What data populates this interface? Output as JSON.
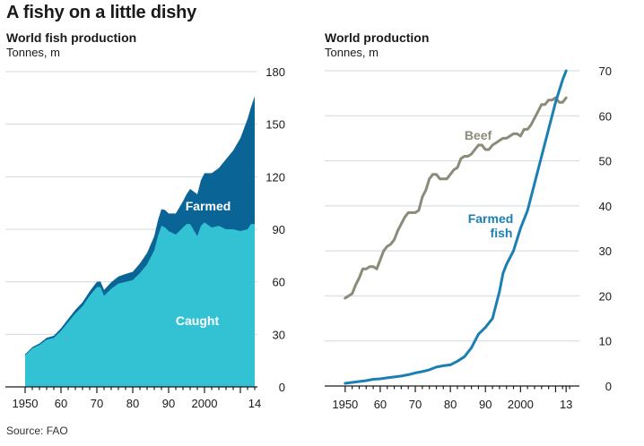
{
  "title": "A fishy on a little dishy",
  "source": "Source: FAO",
  "colors": {
    "caught": "#33c1d4",
    "farmed": "#0a6496",
    "farmed_fish_line": "#1b7fb4",
    "beef_line": "#8c8a79",
    "grid": "#cfd9de"
  },
  "chart_data": [
    {
      "type": "area",
      "stacked": true,
      "title": "World fish production",
      "ylabel": "Tonnes, m",
      "xlim": [
        1948,
        2014
      ],
      "ylim": [
        0,
        180
      ],
      "yticks": [
        0,
        30,
        60,
        90,
        120,
        150,
        180
      ],
      "xticks": [
        1950,
        1960,
        1970,
        1980,
        1990,
        2000,
        2014
      ],
      "xtick_labels": [
        "1950",
        "60",
        "70",
        "80",
        "90",
        "2000",
        "14"
      ],
      "series": [
        {
          "name": "Caught",
          "label": "Caught",
          "x": [
            1950,
            1952,
            1954,
            1956,
            1958,
            1960,
            1962,
            1964,
            1966,
            1968,
            1970,
            1971,
            1972,
            1974,
            1976,
            1978,
            1980,
            1982,
            1984,
            1986,
            1987,
            1988,
            1989,
            1990,
            1992,
            1994,
            1995,
            1996,
            1998,
            1999,
            2000,
            2002,
            2004,
            2006,
            2008,
            2010,
            2012,
            2013,
            2014
          ],
          "values": [
            18,
            22,
            24,
            27,
            28,
            32,
            37,
            42,
            46,
            52,
            57,
            57,
            52,
            56,
            59,
            60,
            61,
            65,
            70,
            78,
            86,
            92,
            91,
            89,
            87,
            91,
            93,
            93,
            86,
            92,
            94,
            91,
            92,
            90,
            90,
            89,
            90,
            93,
            93
          ]
        },
        {
          "name": "Farmed",
          "label": "Farmed",
          "x": [
            1950,
            1952,
            1954,
            1956,
            1958,
            1960,
            1962,
            1964,
            1966,
            1968,
            1970,
            1971,
            1972,
            1974,
            1976,
            1978,
            1980,
            1982,
            1984,
            1986,
            1987,
            1988,
            1989,
            1990,
            1992,
            1994,
            1995,
            1996,
            1998,
            1999,
            2000,
            2002,
            2004,
            2006,
            2008,
            2010,
            2012,
            2013,
            2014
          ],
          "values": [
            0.6,
            0.7,
            0.8,
            1,
            1.2,
            1.5,
            1.8,
            2,
            2.3,
            2.6,
            3,
            3.2,
            3.4,
            3.8,
            4,
            4.5,
            4.7,
            5.5,
            6.5,
            8,
            9,
            9.5,
            10,
            10,
            12,
            15,
            17,
            20,
            24,
            26,
            28,
            31,
            33,
            40,
            45,
            53,
            63,
            67,
            73
          ]
        }
      ]
    },
    {
      "type": "line",
      "title": "World production",
      "ylabel": "Tonnes, m",
      "xlim": [
        1948,
        2015
      ],
      "ylim": [
        0,
        70
      ],
      "yticks": [
        0,
        10,
        20,
        30,
        40,
        50,
        60,
        70
      ],
      "xticks": [
        1950,
        1960,
        1970,
        1980,
        1990,
        2000,
        2013
      ],
      "xtick_labels": [
        "1950",
        "60",
        "70",
        "80",
        "90",
        "2000",
        "13"
      ],
      "series": [
        {
          "name": "Beef",
          "label": "Beef",
          "x": [
            1950,
            1951,
            1952,
            1953,
            1954,
            1955,
            1956,
            1957,
            1958,
            1959,
            1960,
            1961,
            1962,
            1963,
            1964,
            1965,
            1966,
            1967,
            1968,
            1969,
            1970,
            1971,
            1972,
            1973,
            1974,
            1975,
            1976,
            1977,
            1978,
            1979,
            1980,
            1981,
            1982,
            1983,
            1984,
            1985,
            1986,
            1987,
            1988,
            1989,
            1990,
            1991,
            1992,
            1993,
            1994,
            1995,
            1996,
            1997,
            1998,
            1999,
            2000,
            2001,
            2002,
            2003,
            2004,
            2005,
            2006,
            2007,
            2008,
            2009,
            2010,
            2011,
            2012,
            2013
          ],
          "values": [
            19.5,
            20,
            20.5,
            22.5,
            24,
            26,
            26,
            26.5,
            26.5,
            26,
            28,
            30,
            31,
            31.5,
            32.5,
            34.5,
            36,
            37.5,
            38.5,
            38.5,
            38.5,
            39,
            42,
            43.5,
            46,
            47,
            47,
            46,
            46,
            46,
            47,
            48,
            48.5,
            50.5,
            51,
            51,
            51.5,
            52.5,
            53.5,
            53.5,
            52.5,
            52.5,
            53.5,
            54,
            54.5,
            55,
            55,
            55.5,
            56,
            56,
            55.5,
            57,
            57,
            58,
            59.5,
            61,
            62.5,
            62.5,
            63.5,
            63.5,
            64,
            63,
            63,
            64
          ]
        },
        {
          "name": "Farmed fish",
          "label_line1": "Farmed",
          "label_line2": "fish",
          "x": [
            1950,
            1952,
            1954,
            1956,
            1958,
            1960,
            1962,
            1964,
            1966,
            1968,
            1970,
            1972,
            1974,
            1976,
            1978,
            1980,
            1982,
            1984,
            1986,
            1988,
            1990,
            1992,
            1994,
            1995,
            1996,
            1998,
            2000,
            2002,
            2004,
            2006,
            2008,
            2010,
            2012,
            2013
          ],
          "values": [
            0.6,
            0.8,
            1,
            1.2,
            1.5,
            1.6,
            1.8,
            2,
            2.2,
            2.5,
            2.9,
            3.2,
            3.6,
            4.2,
            4.5,
            4.7,
            5.5,
            6.5,
            8.5,
            11.5,
            13,
            15,
            21,
            25,
            27,
            30,
            35,
            39,
            45,
            51,
            57,
            63,
            68,
            70
          ]
        }
      ]
    }
  ]
}
